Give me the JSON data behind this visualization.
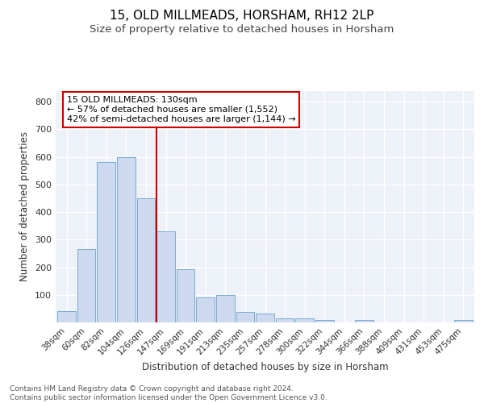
{
  "title1": "15, OLD MILLMEADS, HORSHAM, RH12 2LP",
  "title2": "Size of property relative to detached houses in Horsham",
  "xlabel": "Distribution of detached houses by size in Horsham",
  "ylabel": "Number of detached properties",
  "categories": [
    "38sqm",
    "60sqm",
    "82sqm",
    "104sqm",
    "126sqm",
    "147sqm",
    "169sqm",
    "191sqm",
    "213sqm",
    "235sqm",
    "257sqm",
    "278sqm",
    "300sqm",
    "322sqm",
    "344sqm",
    "366sqm",
    "388sqm",
    "409sqm",
    "431sqm",
    "453sqm",
    "475sqm"
  ],
  "values": [
    40,
    265,
    582,
    600,
    450,
    330,
    193,
    90,
    100,
    38,
    32,
    15,
    15,
    10,
    0,
    8,
    0,
    0,
    0,
    0,
    8
  ],
  "bar_color": "#cdd9ee",
  "bar_edge_color": "#7aaad4",
  "vline_color": "#cc0000",
  "annotation_text": "15 OLD MILLMEADS: 130sqm\n← 57% of detached houses are smaller (1,552)\n42% of semi-detached houses are larger (1,144) →",
  "ylim": [
    0,
    840
  ],
  "yticks": [
    0,
    100,
    200,
    300,
    400,
    500,
    600,
    700,
    800
  ],
  "footer_text": "Contains HM Land Registry data © Crown copyright and database right 2024.\nContains public sector information licensed under the Open Government Licence v3.0.",
  "bg_color": "#edf1f8",
  "grid_color": "#ffffff",
  "title1_fontsize": 11,
  "title2_fontsize": 9.5,
  "ylabel_fontsize": 8.5,
  "xlabel_fontsize": 8.5,
  "tick_fontsize": 7.5,
  "annotation_fontsize": 8,
  "footer_fontsize": 6.5
}
